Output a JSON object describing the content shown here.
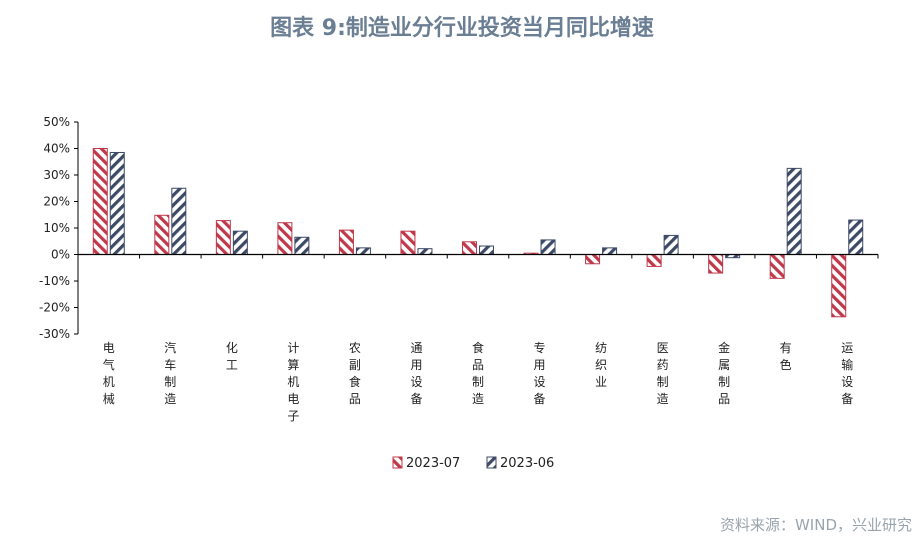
{
  "title": "图表 9:制造业分行业投资当月同比增速",
  "source": "资料来源：WIND，兴业研究",
  "chart_data": {
    "type": "bar",
    "title": "图表 9:制造业分行业投资当月同比增速",
    "ylim": [
      -30,
      50
    ],
    "yticks": [
      "50%",
      "40%",
      "30%",
      "20%",
      "10%",
      "0%",
      "-10%",
      "-20%",
      "-30%"
    ],
    "categories": [
      "电气机械",
      "汽车制造",
      "化工",
      "计算机电子",
      "农副食品",
      "通用设备",
      "食品制造",
      "专用设备",
      "纺织业",
      "医药制造",
      "金属制品",
      "有色",
      "运输设备"
    ],
    "series": [
      {
        "name": "2023-07",
        "color": "#c0394b",
        "values": [
          40,
          14.8,
          12.8,
          12,
          9.2,
          8.8,
          4.8,
          0.5,
          -3.5,
          -4.5,
          -7,
          -9,
          -23.5
        ]
      },
      {
        "name": "2023-06",
        "color": "#3c4a66",
        "values": [
          38.5,
          25,
          8.8,
          6.5,
          2.5,
          2.2,
          3.2,
          5.5,
          2.5,
          7.2,
          -1.2,
          32.5,
          13
        ]
      }
    ],
    "legend_position": "bottom"
  }
}
